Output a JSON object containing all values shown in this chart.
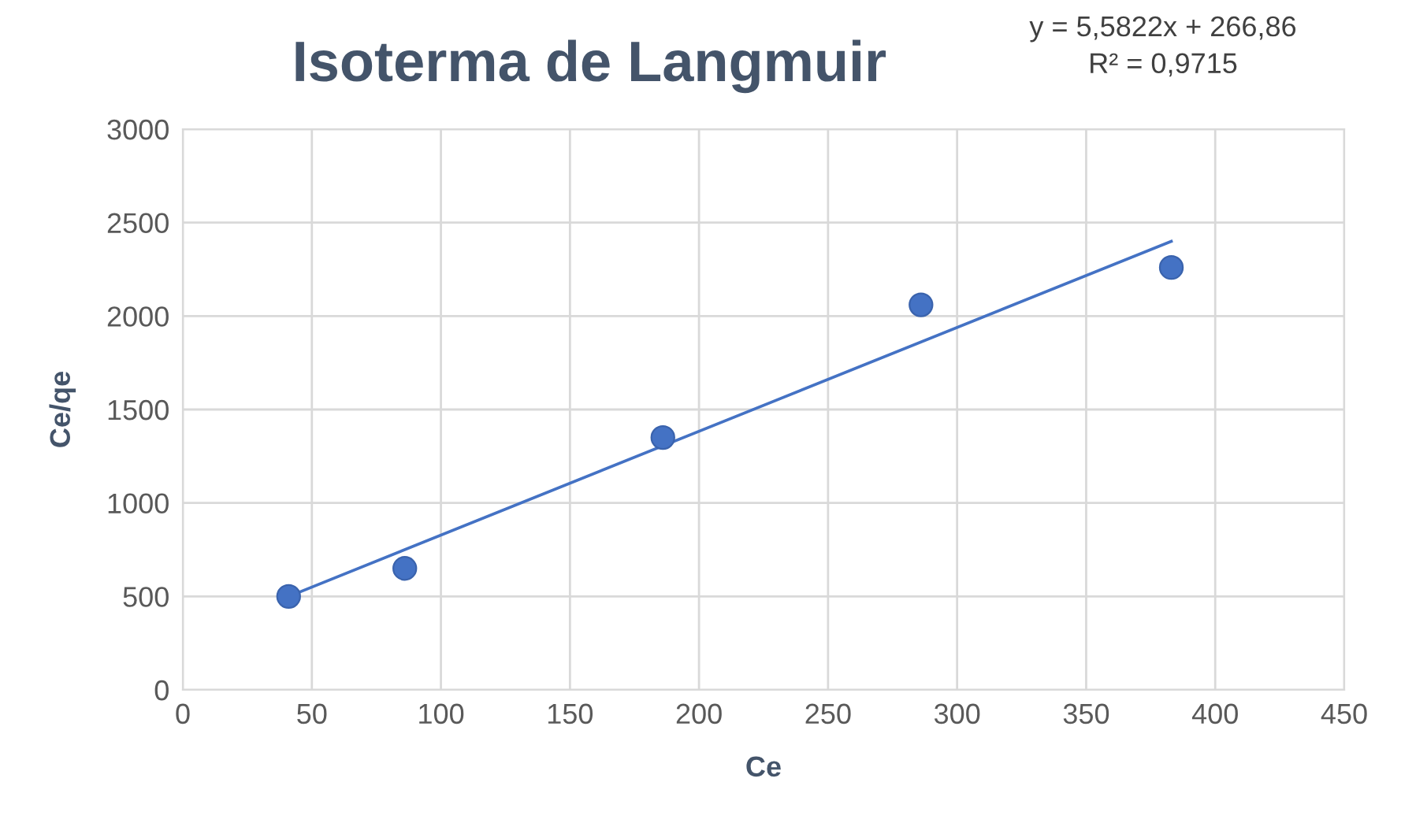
{
  "chart_data": {
    "type": "scatter",
    "title": "Isoterma de Langmuir",
    "xlabel": "Ce",
    "ylabel": "Ce/qe",
    "annotations": [
      "y = 5,5822x + 266,86\nR² = 0,9715"
    ],
    "series": [
      {
        "color": "#4472c4",
        "marker": "circle",
        "x": [
          41,
          86,
          186,
          286,
          383
        ],
        "values": [
          500,
          650,
          1350,
          2060,
          2260
        ]
      },
      {
        "type": "line",
        "color": "#4472c4",
        "marker": "none",
        "line_style": "solid",
        "x": [
          41,
          383
        ],
        "values": [
          500,
          2400
        ]
      }
    ],
    "xlim": [
      0,
      450
    ],
    "xticks": [
      0,
      50,
      100,
      150,
      200,
      250,
      300,
      350,
      400,
      450
    ],
    "ylim": [
      0,
      3000
    ],
    "yticks": [
      0,
      500,
      1000,
      1500,
      2000,
      2500,
      3000
    ],
    "grid": true,
    "legend": false
  }
}
